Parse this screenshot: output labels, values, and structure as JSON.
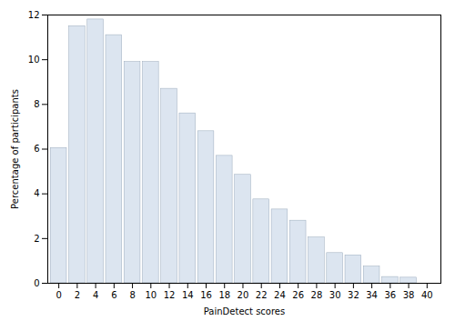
{
  "chart_data": {
    "type": "bar",
    "x": [
      0,
      2,
      4,
      6,
      8,
      10,
      12,
      14,
      16,
      18,
      20,
      22,
      24,
      26,
      28,
      30,
      32,
      34,
      36,
      38
    ],
    "values": [
      6.05,
      11.5,
      11.8,
      11.1,
      9.9,
      9.9,
      8.7,
      7.6,
      6.8,
      5.7,
      4.85,
      3.75,
      3.3,
      2.8,
      2.05,
      1.35,
      1.25,
      0.75,
      0.28,
      0.25
    ],
    "color": "#dce5f0",
    "xlabel": "PainDetect scores",
    "ylabel": "Percentage of participants",
    "xlim": [
      -1.2,
      41.5
    ],
    "ylim": [
      0,
      12
    ],
    "xticks": [
      0,
      2,
      4,
      6,
      8,
      10,
      12,
      14,
      16,
      18,
      20,
      22,
      24,
      26,
      28,
      30,
      32,
      34,
      36,
      38,
      40
    ],
    "yticks": [
      0,
      2,
      4,
      6,
      8,
      10,
      12
    ],
    "grid": false
  }
}
